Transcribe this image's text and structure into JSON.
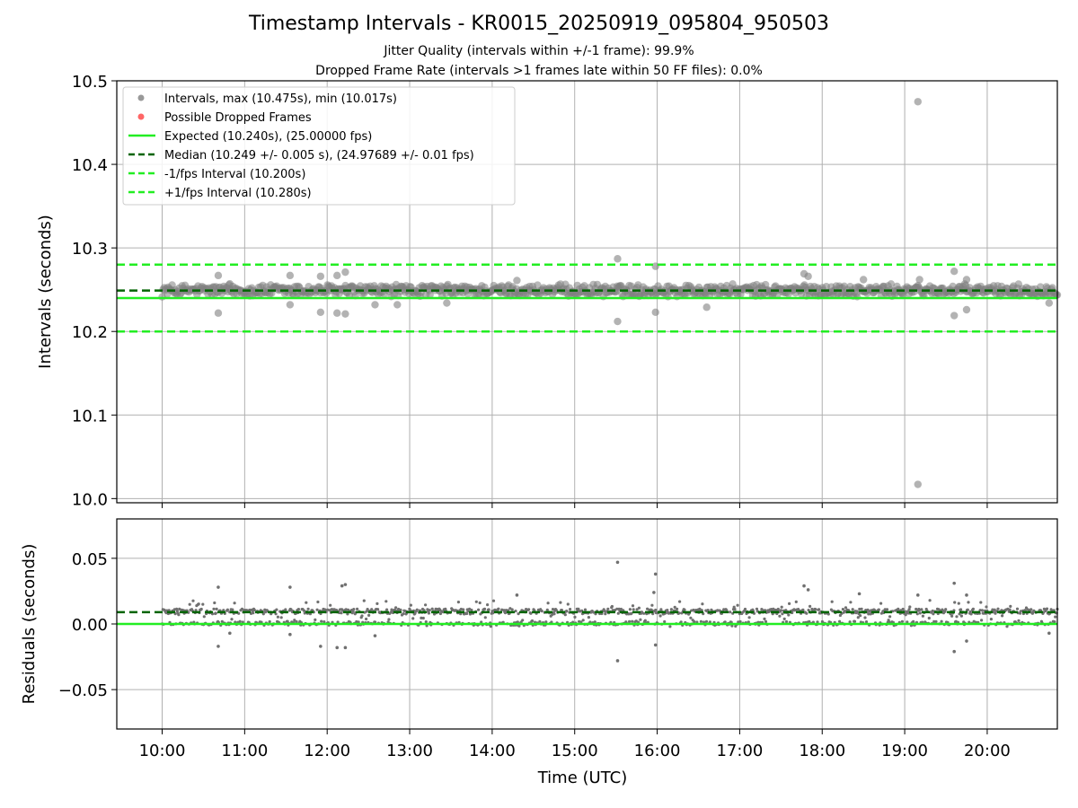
{
  "title": "Timestamp Intervals - KR0015_20250919_095804_950503",
  "subtitle_1": "Jitter Quality (intervals within +/-1 frame): 99.9%",
  "subtitle_2": "Dropped Frame Rate (intervals >1 frames late within 50 FF files): 0.0%",
  "colors": {
    "points": "#808080",
    "dropped": "#ff6666",
    "expected": "#22ee22",
    "median": "#006400",
    "fps_band": "#22ee22",
    "grid": "#b0b0b0"
  },
  "chart_data": [
    {
      "type": "scatter",
      "xlabel": "Time (UTC)",
      "ylabel": "Intervals (seconds)",
      "xlim": [
        9.45,
        20.85
      ],
      "ylim": [
        9.995,
        10.5
      ],
      "yticks": [
        10.0,
        10.1,
        10.2,
        10.3,
        10.4,
        10.5
      ],
      "ytick_labels": [
        "10.0",
        "10.1",
        "10.2",
        "10.3",
        "10.4",
        "10.5"
      ],
      "grid": true,
      "legend_position": "upper-left",
      "legend": [
        {
          "label": "Intervals, max (10.475s), min (10.017s)",
          "kind": "marker",
          "color": "#999999"
        },
        {
          "label": "Possible Dropped Frames",
          "kind": "marker",
          "color": "#ff6666"
        },
        {
          "label": "Expected (10.240s), (25.00000 fps)",
          "kind": "solid",
          "color": "#22ee22"
        },
        {
          "label": "Median (10.249 +/- 0.005 s), (24.97689 +/- 0.01 fps)",
          "kind": "dashed",
          "color": "#006400"
        },
        {
          "label": "-1/fps Interval (10.200s)",
          "kind": "dashed",
          "color": "#22ee22"
        },
        {
          "label": "+1/fps Interval (10.280s)",
          "kind": "dashed",
          "color": "#22ee22"
        }
      ],
      "reference_lines": {
        "expected": 10.24,
        "median": 10.249,
        "minus_fps": 10.2,
        "plus_fps": 10.28
      },
      "series_summary": {
        "start_hour": 10.0,
        "end_hour": 20.85,
        "max": 10.475,
        "min": 10.017,
        "typical_low": 10.238,
        "typical_high": 10.255
      },
      "outliers": [
        {
          "x": 10.68,
          "y": 10.267
        },
        {
          "x": 10.68,
          "y": 10.222
        },
        {
          "x": 10.82,
          "y": 10.257
        },
        {
          "x": 11.55,
          "y": 10.267
        },
        {
          "x": 11.55,
          "y": 10.232
        },
        {
          "x": 11.92,
          "y": 10.266
        },
        {
          "x": 11.92,
          "y": 10.223
        },
        {
          "x": 12.12,
          "y": 10.267
        },
        {
          "x": 12.12,
          "y": 10.222
        },
        {
          "x": 12.22,
          "y": 10.271
        },
        {
          "x": 12.22,
          "y": 10.221
        },
        {
          "x": 12.58,
          "y": 10.232
        },
        {
          "x": 12.85,
          "y": 10.232
        },
        {
          "x": 13.45,
          "y": 10.234
        },
        {
          "x": 14.3,
          "y": 10.261
        },
        {
          "x": 15.52,
          "y": 10.287
        },
        {
          "x": 15.52,
          "y": 10.212
        },
        {
          "x": 15.98,
          "y": 10.278
        },
        {
          "x": 15.98,
          "y": 10.223
        },
        {
          "x": 16.6,
          "y": 10.229
        },
        {
          "x": 17.78,
          "y": 10.269
        },
        {
          "x": 17.83,
          "y": 10.266
        },
        {
          "x": 18.5,
          "y": 10.262
        },
        {
          "x": 19.16,
          "y": 10.475
        },
        {
          "x": 19.16,
          "y": 10.017
        },
        {
          "x": 19.18,
          "y": 10.262
        },
        {
          "x": 19.6,
          "y": 10.272
        },
        {
          "x": 19.6,
          "y": 10.219
        },
        {
          "x": 19.75,
          "y": 10.262
        },
        {
          "x": 19.75,
          "y": 10.226
        },
        {
          "x": 20.75,
          "y": 10.234
        }
      ]
    },
    {
      "type": "scatter",
      "xlabel": "Time (UTC)",
      "ylabel": "Residuals (seconds)",
      "xlim": [
        9.45,
        20.85
      ],
      "ylim": [
        -0.08,
        0.08
      ],
      "yticks": [
        -0.05,
        0.0,
        0.05
      ],
      "ytick_labels": [
        "−0.05",
        "0.00",
        "0.05"
      ],
      "xticks": [
        10,
        11,
        12,
        13,
        14,
        15,
        16,
        17,
        18,
        19,
        20
      ],
      "xtick_labels": [
        "10:00",
        "11:00",
        "12:00",
        "13:00",
        "14:00",
        "15:00",
        "16:00",
        "17:00",
        "18:00",
        "19:00",
        "20:00"
      ],
      "grid": true,
      "reference_lines": {
        "zero": 0.0,
        "median_offset": 0.009
      },
      "outliers": [
        {
          "x": 10.68,
          "y": 0.028
        },
        {
          "x": 10.68,
          "y": -0.017
        },
        {
          "x": 10.82,
          "y": -0.007
        },
        {
          "x": 11.55,
          "y": 0.028
        },
        {
          "x": 11.55,
          "y": -0.008
        },
        {
          "x": 11.92,
          "y": -0.017
        },
        {
          "x": 12.12,
          "y": -0.018
        },
        {
          "x": 12.18,
          "y": 0.029
        },
        {
          "x": 12.22,
          "y": 0.03
        },
        {
          "x": 12.22,
          "y": -0.018
        },
        {
          "x": 12.58,
          "y": -0.009
        },
        {
          "x": 14.3,
          "y": 0.022
        },
        {
          "x": 15.52,
          "y": 0.047
        },
        {
          "x": 15.52,
          "y": -0.028
        },
        {
          "x": 15.98,
          "y": 0.038
        },
        {
          "x": 15.98,
          "y": -0.016
        },
        {
          "x": 15.96,
          "y": 0.024
        },
        {
          "x": 17.78,
          "y": 0.029
        },
        {
          "x": 17.83,
          "y": 0.026
        },
        {
          "x": 18.45,
          "y": 0.023
        },
        {
          "x": 19.16,
          "y": 0.022
        },
        {
          "x": 19.6,
          "y": 0.031
        },
        {
          "x": 19.6,
          "y": -0.021
        },
        {
          "x": 19.75,
          "y": 0.022
        },
        {
          "x": 19.75,
          "y": -0.013
        },
        {
          "x": 20.75,
          "y": -0.007
        }
      ]
    }
  ]
}
